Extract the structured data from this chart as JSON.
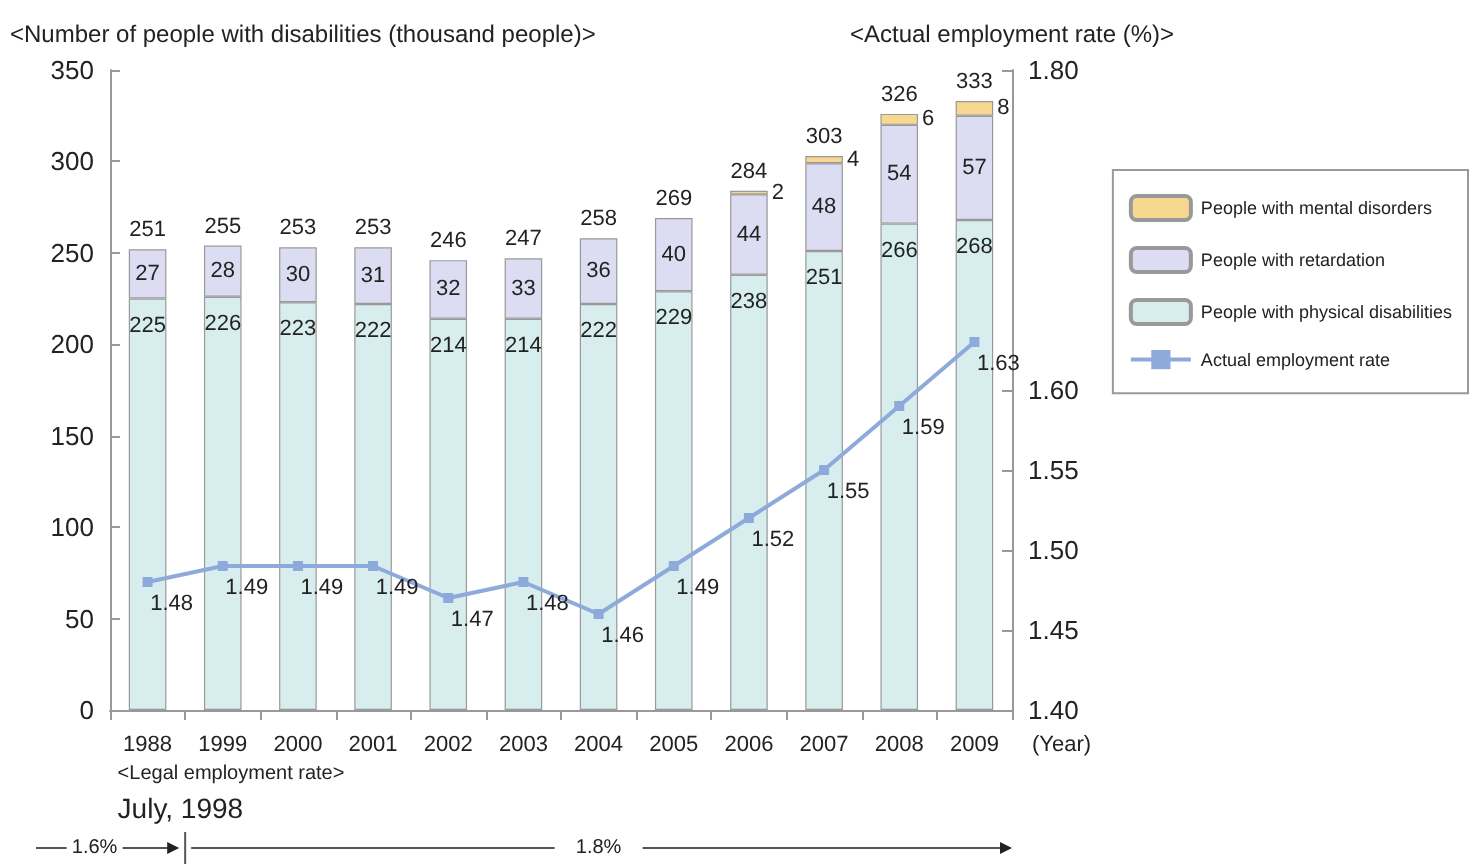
{
  "chart_data": {
    "type": "bar",
    "stacked": true,
    "ylabel": "<Number of people with disabilities (thousand people)>",
    "y2label": "<Actual employment rate (%)>",
    "xlabel": "(Year)",
    "categories": [
      "1988",
      "1999",
      "2000",
      "2001",
      "2002",
      "2003",
      "2004",
      "2005",
      "2006",
      "2007",
      "2008",
      "2009"
    ],
    "series": [
      {
        "name": "People with physical disabilities",
        "color": "#d8eeee",
        "values": [
          225,
          226,
          223,
          222,
          214,
          214,
          222,
          229,
          238,
          251,
          266,
          268
        ]
      },
      {
        "name": "People with retardation",
        "color": "#dcdcf2",
        "values": [
          27,
          28,
          30,
          31,
          32,
          33,
          36,
          40,
          44,
          48,
          54,
          57
        ]
      },
      {
        "name": "People with mental disorders",
        "color": "#f8d890",
        "values": [
          null,
          null,
          null,
          null,
          null,
          null,
          null,
          null,
          2,
          4,
          6,
          8
        ]
      },
      {
        "name": "Actual employment rate",
        "type": "line",
        "axis": "y2",
        "color": "#8eaadb",
        "marker": "square",
        "values": [
          1.48,
          1.49,
          1.49,
          1.49,
          1.47,
          1.48,
          1.46,
          1.49,
          1.52,
          1.55,
          1.59,
          1.63
        ]
      }
    ],
    "totals": [
      "251",
      "255",
      "253",
      "253",
      "246",
      "247",
      "258",
      "269",
      "284",
      "303",
      "326",
      "333"
    ],
    "data_labels": true,
    "ylim": [
      0,
      350
    ],
    "yticks": [
      0,
      50,
      100,
      150,
      200,
      250,
      300,
      350
    ],
    "y2lim": [
      1.4,
      1.8
    ],
    "y2ticks": [
      "1.40",
      "1.45",
      "1.50",
      "1.55",
      "1.60",
      "1.80"
    ],
    "grid": false,
    "legend": "right",
    "annotations": [
      "<Legal employment rate>",
      "July, 1998",
      "1.6%",
      "1.8%"
    ]
  }
}
